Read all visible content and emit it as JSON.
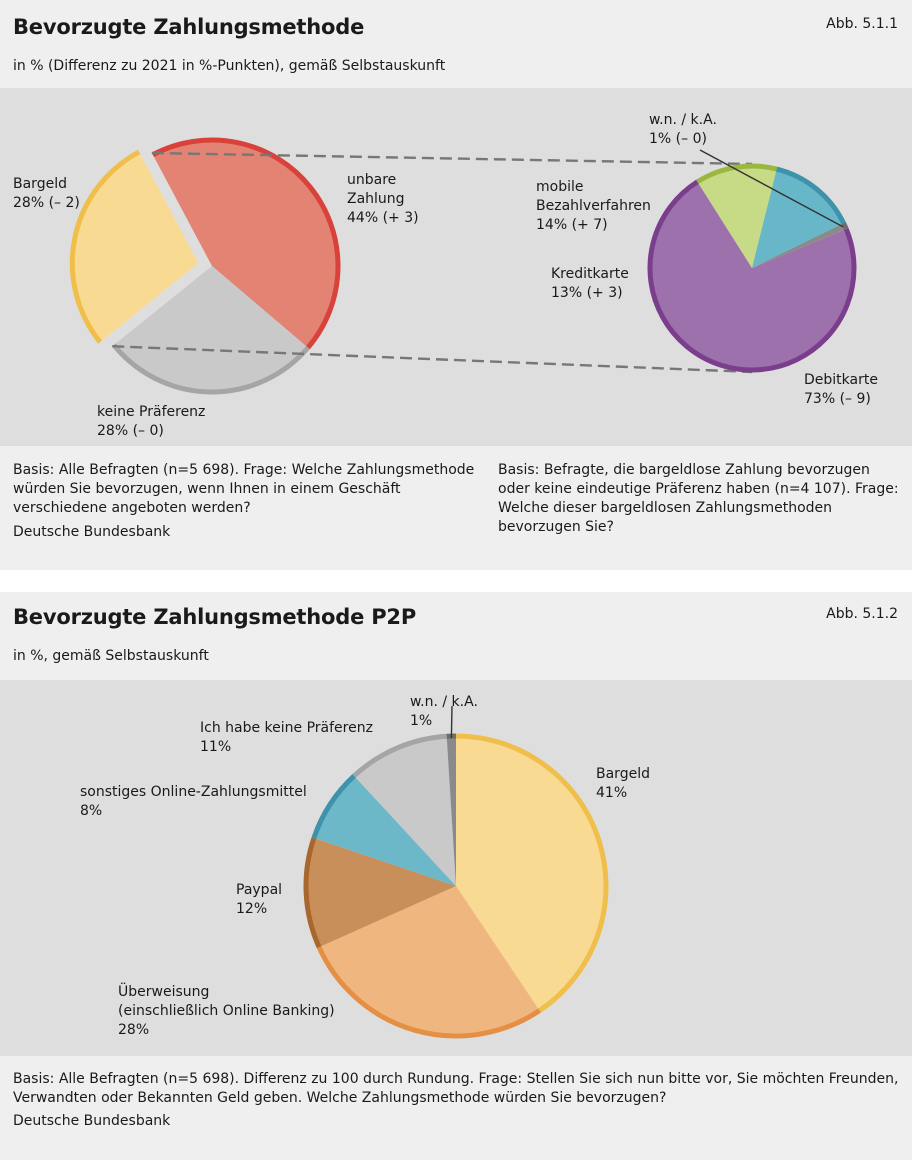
{
  "colors": {
    "bargeld_fill": "#f8da92",
    "bargeld_rim": "#f0be4a",
    "unbar_fill": "#e38373",
    "unbar_rim": "#d8423a",
    "keine_fill": "#c9c9c9",
    "keine_rim": "#a5a5a5",
    "debit_fill": "#9d72ac",
    "debit_rim": "#7b3e8d",
    "kredit_fill": "#c7da86",
    "kredit_rim": "#9ab840",
    "mobile_fill": "#68b7c8",
    "mobile_rim": "#3e92ab",
    "wn_fill": "#8a8a8a",
    "wn_rim": "#6e6e6e",
    "ueberweisung_fill": "#efb77f",
    "ueberweisung_rim": "#e58f45",
    "paypal_fill": "#c98f5a",
    "paypal_rim": "#a8672d",
    "online_fill": "#6cb8c9",
    "online_rim": "#3e92ab"
  },
  "fig1": {
    "title": "Bevorzugte Zahlungsmethode",
    "fig_no": "Abb. 5.1.1",
    "subtitle": "in % (Differenz zu 2021 in %-Punkten), gemäß Selbstauskunft",
    "note_left": [
      "Basis: Alle Befragten (n=5 698). Frage: Welche Zahlungsmethode",
      "würden Sie bevorzugen, wenn Ihnen in einem Geschäft",
      "verschiedene angeboten werden?"
    ],
    "note_right": [
      "Basis: Befragte, die bargeldlose Zahlung bevorzugen",
      "oder keine eindeutige Präferenz haben (n=4 107). Frage:",
      "Welche dieser bargeldlosen Zahlungsmethoden",
      "bevorzugen Sie?"
    ],
    "source": "Deutsche Bundesbank"
  },
  "fig2": {
    "title": "Bevorzugte Zahlungsmethode P2P",
    "fig_no": "Abb. 5.1.2",
    "subtitle": "in %, gemäß Selbstauskunft",
    "note": [
      "Basis: Alle Befragten (n=5 698). Differenz zu 100 durch Rundung. Frage: Stellen Sie sich nun bitte vor, Sie möchten Freunden,",
      "Verwandten oder Bekannten Geld geben. Welche Zahlungsmethode würden Sie bevorzugen?"
    ],
    "source": "Deutsche Bundesbank"
  },
  "chart_data": [
    {
      "type": "pie",
      "title": "Bevorzugte Zahlungsmethode",
      "series": [
        {
          "key": "bargeld",
          "name": "Bargeld",
          "value": 28,
          "diff_label": "(– 2)",
          "label_lines": [
            "Bargeld",
            "28% (– 2)"
          ]
        },
        {
          "key": "unbar",
          "name": "unbare Zahlung",
          "value": 44,
          "diff_label": "(+ 3)",
          "label_lines": [
            "unbare",
            "Zahlung",
            "44% (+ 3)"
          ]
        },
        {
          "key": "keine",
          "name": "keine Präferenz",
          "value": 28,
          "diff_label": "(– 0)",
          "label_lines": [
            "keine Präferenz",
            "28% (– 0)"
          ]
        }
      ]
    },
    {
      "type": "pie",
      "title": "",
      "series": [
        {
          "key": "debit",
          "name": "Debitkarte",
          "value": 73,
          "diff_label": "(– 9)",
          "label_lines": [
            "Debitkarte",
            "73% (– 9)"
          ]
        },
        {
          "key": "kredit",
          "name": "Kreditkarte",
          "value": 13,
          "diff_label": "(+ 3)",
          "label_lines": [
            "Kreditkarte",
            "13% (+ 3)"
          ]
        },
        {
          "key": "mobile",
          "name": "mobile Bezahlverfahren",
          "value": 14,
          "diff_label": "(+ 7)",
          "label_lines": [
            "mobile",
            "Bezahlverfahren",
            "14% (+ 7)"
          ]
        },
        {
          "key": "wn",
          "name": "w.n. / k.A.",
          "value": 1,
          "diff_label": "(– 0)",
          "label_lines": [
            "w.n. / k.A.",
            "1% (– 0)"
          ]
        }
      ]
    },
    {
      "type": "pie",
      "title": "Bevorzugte Zahlungsmethode P2P",
      "series": [
        {
          "key": "bargeld",
          "name": "Bargeld",
          "value": 41,
          "label_lines": [
            "Bargeld",
            "41%"
          ]
        },
        {
          "key": "ueberweisung",
          "name": "Überweisung (einschließlich Online Banking)",
          "value": 28,
          "label_lines": [
            "Überweisung",
            "(einschließlich Online Banking)",
            "28%"
          ]
        },
        {
          "key": "paypal",
          "name": "Paypal",
          "value": 12,
          "label_lines": [
            "Paypal",
            "12%"
          ]
        },
        {
          "key": "online",
          "name": "sonstiges Online-Zahlungsmittel",
          "value": 8,
          "label_lines": [
            "sonstiges Online-Zahlungsmittel",
            "8%"
          ]
        },
        {
          "key": "keine",
          "name": "Ich habe keine Präferenz",
          "value": 11,
          "label_lines": [
            "Ich habe keine Präferenz",
            "11%"
          ]
        },
        {
          "key": "wn",
          "name": "w.n. / k.A.",
          "value": 1,
          "label_lines": [
            "w.n. / k.A.",
            "1%"
          ]
        }
      ]
    }
  ]
}
